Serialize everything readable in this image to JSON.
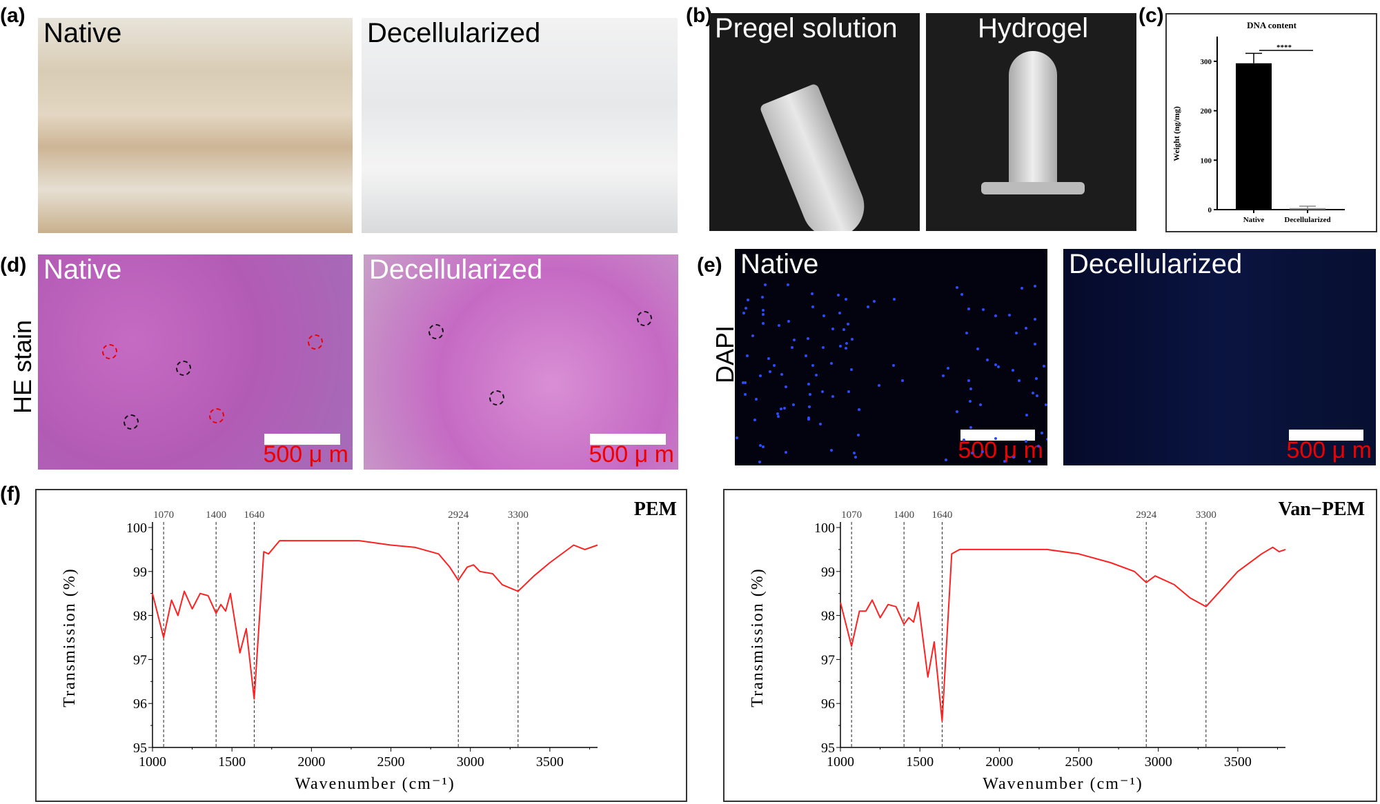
{
  "panels": {
    "a": {
      "label": "(a)",
      "left": "Native",
      "right": "Decellularized"
    },
    "b": {
      "label": "(b)",
      "left": "Pregel solution",
      "right": "Hydrogel"
    },
    "c": {
      "label": "(c)"
    },
    "d": {
      "label": "(d)",
      "left": "Native",
      "right": "Decellularized",
      "side": "HE stain",
      "scale": "500 μ m"
    },
    "e": {
      "label": "(e)",
      "left": "Native",
      "right": "Decellularized",
      "side": "DAPI",
      "scale": "500 μ m"
    },
    "f": {
      "label": "(f)"
    }
  },
  "colors": {
    "spectrum": "#ff2020",
    "scale_text": "#ee0000",
    "bar": "#000000"
  },
  "chart_data": [
    {
      "type": "bar",
      "title": "DNA content",
      "ylabel": "Weight (ng/mg)",
      "categories": [
        "Native",
        "Decellularized"
      ],
      "values": [
        296,
        3
      ],
      "errors": [
        20,
        4
      ],
      "ylim": [
        0,
        350
      ],
      "yticks": [
        0,
        100,
        200,
        300
      ],
      "significance": "****"
    },
    {
      "type": "line",
      "title": "PEM",
      "xlabel": "Wavenumber (cm⁻¹)",
      "ylabel": "Transmission (%)",
      "xlim": [
        1000,
        3800
      ],
      "ylim": [
        95,
        100
      ],
      "xticks": [
        1000,
        1500,
        2000,
        2500,
        3000,
        3500
      ],
      "yticks": [
        95,
        96,
        97,
        98,
        99,
        100
      ],
      "markers": [
        1070,
        1400,
        1640,
        2924,
        3300
      ],
      "x": [
        1000,
        1070,
        1120,
        1160,
        1200,
        1250,
        1300,
        1350,
        1400,
        1430,
        1460,
        1490,
        1550,
        1590,
        1640,
        1700,
        1730,
        1800,
        2000,
        2300,
        2500,
        2650,
        2800,
        2870,
        2924,
        2980,
        3020,
        3060,
        3140,
        3200,
        3300,
        3400,
        3500,
        3650,
        3720,
        3800
      ],
      "y": [
        98.5,
        97.5,
        98.35,
        98.0,
        98.55,
        98.15,
        98.5,
        98.45,
        98.05,
        98.25,
        98.1,
        98.5,
        97.15,
        97.7,
        96.1,
        99.45,
        99.4,
        99.7,
        99.7,
        99.7,
        99.6,
        99.55,
        99.4,
        99.1,
        98.8,
        99.1,
        99.15,
        99.0,
        98.95,
        98.7,
        98.55,
        98.9,
        99.2,
        99.6,
        99.5,
        99.6
      ]
    },
    {
      "type": "line",
      "title": "Van−PEM",
      "xlabel": "Wavenumber (cm⁻¹)",
      "ylabel": "Transmission (%)",
      "xlim": [
        1000,
        3800
      ],
      "ylim": [
        95,
        100
      ],
      "xticks": [
        1000,
        1500,
        2000,
        2500,
        3000,
        3500
      ],
      "yticks": [
        95,
        96,
        97,
        98,
        99,
        100
      ],
      "markers": [
        1070,
        1400,
        1640,
        2924,
        3300
      ],
      "x": [
        1000,
        1070,
        1120,
        1160,
        1200,
        1250,
        1300,
        1350,
        1400,
        1430,
        1460,
        1490,
        1550,
        1590,
        1640,
        1700,
        1750,
        2300,
        2500,
        2700,
        2850,
        2924,
        2980,
        3100,
        3200,
        3300,
        3400,
        3500,
        3650,
        3720,
        3760,
        3800
      ],
      "y": [
        98.3,
        97.3,
        98.1,
        98.1,
        98.35,
        97.95,
        98.25,
        98.2,
        97.8,
        97.95,
        97.85,
        98.3,
        96.6,
        97.4,
        95.6,
        99.4,
        99.5,
        99.5,
        99.4,
        99.2,
        99.0,
        98.75,
        98.9,
        98.7,
        98.4,
        98.2,
        98.6,
        99.0,
        99.4,
        99.55,
        99.45,
        99.5
      ]
    }
  ]
}
